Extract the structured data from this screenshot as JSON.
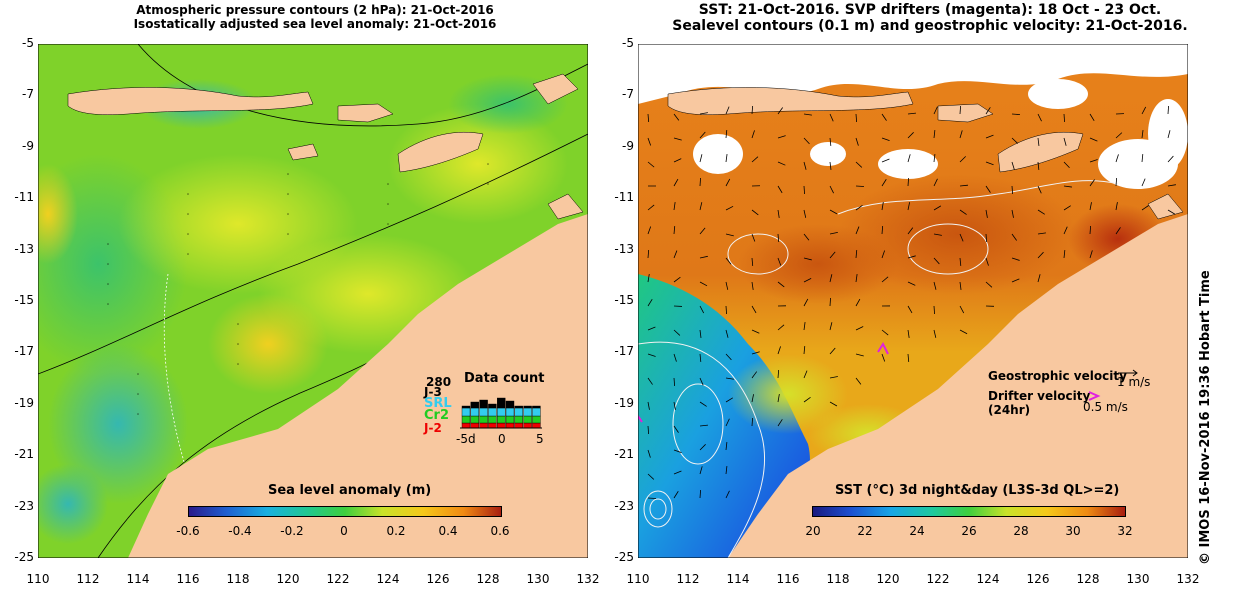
{
  "left_panel": {
    "title_line1": "Atmospheric pressure contours (2 hPa): 21-Oct-2016",
    "title_line2": "Isostatically adjusted sea level anomaly: 21-Oct-2016",
    "colorbar": {
      "title": "Sea level anomaly (m)",
      "ticks": [
        "-0.6",
        "-0.4",
        "-0.2",
        "0",
        "0.2",
        "0.4",
        "0.6"
      ]
    },
    "data_count": {
      "title": "Data count",
      "max_label": "280",
      "missions": [
        {
          "name": "J-3",
          "color": "#000000"
        },
        {
          "name": "SRL",
          "color": "#33ccee"
        },
        {
          "name": "Cr2",
          "color": "#22cc22"
        },
        {
          "name": "J-2",
          "color": "#ee0000"
        }
      ],
      "x_ticks": [
        "-5d",
        "0",
        "5"
      ]
    }
  },
  "right_panel": {
    "title_line1": "SST: 21-Oct-2016. SVP drifters (magenta): 18 Oct - 23 Oct.",
    "title_line2": "Sealevel contours (0.1 m) and geostrophic velocity: 21-Oct-2016.",
    "colorbar": {
      "title": "SST (°C) 3d night&day (L3S-3d QL>=2)",
      "ticks": [
        "20",
        "22",
        "24",
        "26",
        "28",
        "30",
        "32"
      ]
    },
    "legend": {
      "geostrophic_label": "Geostrophic velocity",
      "geostrophic_scale": "1 m/s",
      "drifter_label": "Drifter velocity",
      "drifter_sub": "(24hr)",
      "drifter_scale": "0.5 m/s"
    }
  },
  "axes": {
    "y_ticks": [
      "-5",
      "-7",
      "-9",
      "-11",
      "-13",
      "-15",
      "-17",
      "-19",
      "-21",
      "-23",
      "-25"
    ],
    "x_ticks": [
      "110",
      "112",
      "114",
      "116",
      "118",
      "120",
      "122",
      "124",
      "126",
      "128",
      "130",
      "132"
    ]
  },
  "credit": "© IMOS 16-Nov-2016 19:36 Hobart Time",
  "colors": {
    "land": "#f8c8a0",
    "sla_base": "#7ed321",
    "sst_base": "#e07a18"
  }
}
